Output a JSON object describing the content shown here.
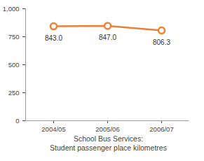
{
  "chart_data": {
    "type": "line",
    "title": "School Bus Services:",
    "subtitle": "Student passenger place kilometres",
    "categories": [
      "2004/05",
      "2005/06",
      "2006/07"
    ],
    "values": [
      843.0,
      847.0,
      806.3
    ],
    "value_labels": [
      "843.0",
      "847.0",
      "806.3"
    ],
    "data_labels": true,
    "color": "#e8823a",
    "marker": "circle",
    "line_style": "solid",
    "ylim": [
      0,
      1000
    ],
    "yticks": [
      0,
      250,
      500,
      750,
      {
        "value": 1000,
        "label": "1,000"
      }
    ],
    "grid": false
  }
}
